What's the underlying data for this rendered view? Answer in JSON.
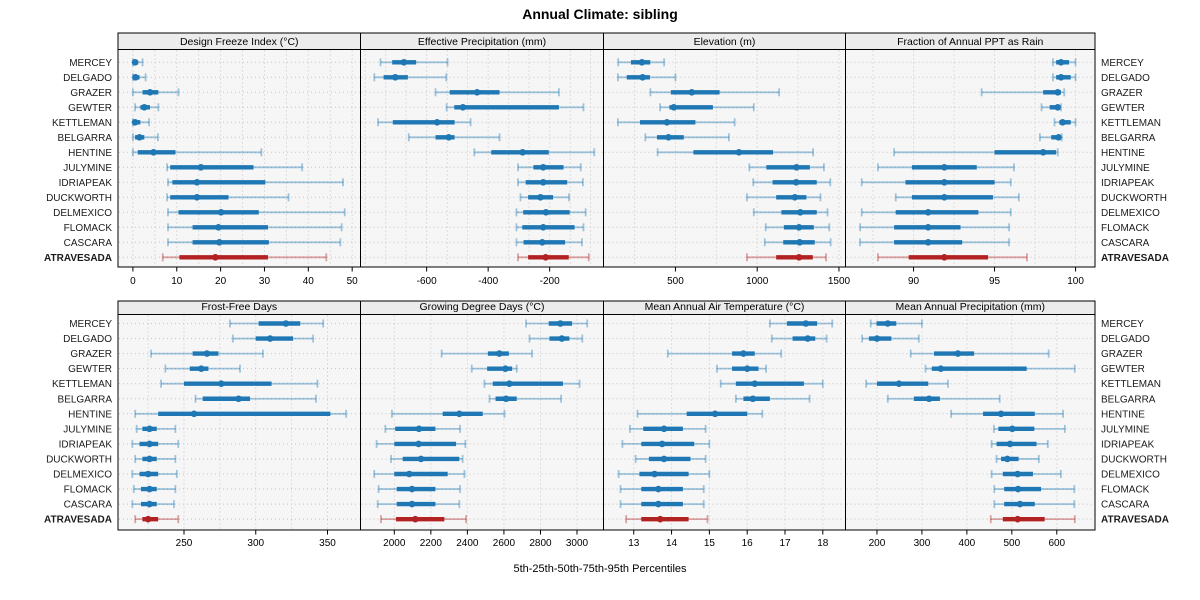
{
  "title": "Annual Climate: sibling",
  "footer": "5th-25th-50th-75th-95th Percentiles",
  "colors": {
    "series": "#1f77b4",
    "series_light": "rgba(31,119,180,0.40)",
    "highlight": "#b22222",
    "highlight_light": "rgba(178,34,34,0.40)",
    "strip_bg": "#ececec",
    "panel_bg": "#f6f6f6",
    "grid": "#c4c4c4",
    "border": "#000000",
    "text": "#000000",
    "label_text": "#1a1a1a"
  },
  "chart_data": {
    "type": "interval-dot-percentiles",
    "title": "Annual Climate: sibling",
    "caption": "5th-25th-50th-75th-95th Percentiles",
    "percentiles": [
      5,
      25,
      50,
      75,
      95
    ],
    "legend_position": "none",
    "grid": "dotted",
    "categories": [
      "MERCEY",
      "DELGADO",
      "GRAZER",
      "GEWTER",
      "KETTLEMAN",
      "BELGARRA",
      "HENTINE",
      "JULYMINE",
      "IDRIAPEAK",
      "DUCKWORTH",
      "DELMEXICO",
      "FLOMACK",
      "CASCARA",
      "ATRAVESADA"
    ],
    "highlight_category": "ATRAVESADA",
    "panels": [
      {
        "title": "Design Freeze Index (°C)",
        "xlim": [
          -3.4,
          51.9
        ],
        "ticks": [
          0,
          10,
          20,
          30,
          40,
          50
        ],
        "grid_values": [
          0,
          5,
          10,
          15,
          20,
          25,
          30,
          35,
          40,
          45,
          50
        ],
        "values": [
          [
            0,
            0.1,
            0.5,
            1.2,
            2.2
          ],
          [
            0,
            0.1,
            0.6,
            1.5,
            2.9
          ],
          [
            0,
            2.2,
            3.9,
            5.8,
            10.4
          ],
          [
            0.5,
            1.7,
            2.6,
            3.9,
            5.8
          ],
          [
            0,
            0.1,
            0.5,
            1.7,
            3.7
          ],
          [
            0,
            0.5,
            1.5,
            2.6,
            5.7
          ],
          [
            0,
            1.1,
            4.7,
            9.7,
            29.3
          ],
          [
            7.8,
            8.5,
            15.5,
            27.5,
            38.6
          ],
          [
            8,
            9,
            14.6,
            30.2,
            47.9
          ],
          [
            7.8,
            8.5,
            14.6,
            21.8,
            35.5
          ],
          [
            8,
            10.4,
            20.1,
            28.7,
            48.3
          ],
          [
            8,
            13.6,
            19.5,
            30.8,
            47.6
          ],
          [
            8,
            13.6,
            19.7,
            31,
            47.3
          ],
          [
            6.8,
            10.6,
            18.8,
            30.8,
            44.1
          ]
        ]
      },
      {
        "title": "Effective Precipitation (mm)",
        "xlim": [
          -815,
          -25
        ],
        "ticks": [
          -600,
          -400,
          -200
        ],
        "grid_values": [
          -800,
          -733,
          -667,
          -600,
          -533,
          -467,
          -400,
          -333,
          -267,
          -200,
          -133,
          -67
        ],
        "values": [
          [
            -750,
            -712,
            -674,
            -634,
            -532
          ],
          [
            -770,
            -740,
            -702,
            -661,
            -536
          ],
          [
            -571,
            -525,
            -436,
            -363,
            -170
          ],
          [
            -535,
            -510,
            -482,
            -170,
            -90
          ],
          [
            -758,
            -710,
            -566,
            -509,
            -457
          ],
          [
            -658,
            -571,
            -528,
            -509,
            -363
          ],
          [
            -445,
            -390,
            -288,
            -203,
            -55
          ],
          [
            -303,
            -253,
            -221,
            -155,
            -99
          ],
          [
            -303,
            -278,
            -221,
            -143,
            -92
          ],
          [
            -295,
            -270,
            -230,
            -189,
            -137
          ],
          [
            -308,
            -286,
            -212,
            -135,
            -83
          ],
          [
            -308,
            -289,
            -221,
            -119,
            -90
          ],
          [
            -308,
            -285,
            -224,
            -150,
            -95
          ],
          [
            -303,
            -270,
            -213,
            -138,
            -73
          ]
        ]
      },
      {
        "title": "Elevation (m)",
        "xlim": [
          60,
          1540
        ],
        "ticks": [
          500,
          1000,
          1500
        ],
        "grid_values": [
          250,
          500,
          750,
          1000,
          1250,
          1500
        ],
        "values": [
          [
            150,
            228,
            295,
            346,
            431
          ],
          [
            148,
            202,
            299,
            344,
            500
          ],
          [
            347,
            472,
            600,
            770,
            1134
          ],
          [
            406,
            463,
            490,
            729,
            979
          ],
          [
            148,
            283,
            448,
            622,
            862
          ],
          [
            316,
            387,
            457,
            551,
            827
          ],
          [
            391,
            610,
            888,
            1097,
            1342
          ],
          [
            952,
            1056,
            1240,
            1322,
            1408
          ],
          [
            976,
            1094,
            1238,
            1364,
            1447
          ],
          [
            937,
            1116,
            1230,
            1301,
            1387
          ],
          [
            979,
            1148,
            1264,
            1364,
            1430
          ],
          [
            1052,
            1163,
            1256,
            1346,
            1441
          ],
          [
            1046,
            1159,
            1260,
            1352,
            1449
          ],
          [
            937,
            1116,
            1256,
            1340,
            1421
          ]
        ]
      },
      {
        "title": "Fraction of Annual PPT as Rain",
        "xlim": [
          85.8,
          101.2
        ],
        "ticks": [
          90,
          95,
          100
        ],
        "grid_values": [
          87.5,
          90,
          92.5,
          95,
          97.5,
          100
        ],
        "values": [
          [
            98.6,
            98.8,
            99.1,
            99.6,
            100
          ],
          [
            98.6,
            98.8,
            99.1,
            99.7,
            100
          ],
          [
            94.2,
            98.0,
            98.9,
            99.1,
            99.3
          ],
          [
            97.9,
            98.4,
            98.9,
            99.0,
            99.1
          ],
          [
            98.7,
            99.0,
            99.2,
            99.7,
            100
          ],
          [
            97.8,
            98.5,
            98.95,
            99.05,
            99.15
          ],
          [
            88.8,
            95.0,
            98.0,
            98.8,
            98.9
          ],
          [
            87.8,
            89.9,
            91.9,
            93.9,
            96.2
          ],
          [
            86.8,
            89.5,
            91.9,
            95.0,
            96.0
          ],
          [
            88.9,
            89.9,
            91.9,
            94.9,
            96.5
          ],
          [
            86.8,
            88.9,
            90.9,
            94.0,
            96.0
          ],
          [
            86.7,
            88.8,
            90.9,
            92.9,
            95.9
          ],
          [
            86.7,
            88.8,
            90.9,
            93.0,
            95.9
          ],
          [
            87.8,
            89.7,
            91.9,
            94.6,
            97.0
          ]
        ]
      },
      {
        "title": "Frost-Free Days",
        "xlim": [
          204,
          373
        ],
        "ticks": [
          250,
          300,
          350
        ],
        "grid_values": [
          225,
          250,
          275,
          300,
          325,
          350
        ],
        "values": [
          [
            282,
            302,
            321,
            331,
            347
          ],
          [
            284,
            300,
            310,
            326,
            340
          ],
          [
            227,
            256,
            266,
            274,
            305
          ],
          [
            237,
            254,
            262,
            267,
            289
          ],
          [
            234,
            250,
            276,
            311,
            343
          ],
          [
            258,
            263,
            288,
            296,
            342
          ],
          [
            216,
            232,
            257,
            352,
            363
          ],
          [
            217,
            221,
            226,
            231,
            244
          ],
          [
            214,
            219,
            226,
            232,
            246
          ],
          [
            216,
            221,
            226,
            231,
            244
          ],
          [
            214,
            219,
            225,
            232,
            245
          ],
          [
            215,
            220,
            226,
            231,
            244
          ],
          [
            214,
            220,
            226,
            231,
            243
          ],
          [
            216,
            221,
            225,
            232,
            246
          ]
        ]
      },
      {
        "title": "Growing Degree Days (°C)",
        "xlim": [
          1815,
          3145
        ],
        "ticks": [
          2000,
          2200,
          2400,
          2600,
          2800,
          3000
        ],
        "grid_values": [
          2000,
          2200,
          2400,
          2600,
          2800,
          3000
        ],
        "values": [
          [
            2721,
            2845,
            2909,
            2973,
            3056
          ],
          [
            2740,
            2849,
            2917,
            2958,
            3029
          ],
          [
            2259,
            2512,
            2575,
            2627,
            2754
          ],
          [
            2424,
            2508,
            2608,
            2645,
            2670
          ],
          [
            2493,
            2539,
            2630,
            2923,
            3014
          ],
          [
            2521,
            2554,
            2612,
            2670,
            2913
          ],
          [
            1987,
            2265,
            2356,
            2484,
            2603
          ],
          [
            1951,
            2005,
            2135,
            2225,
            2360
          ],
          [
            1903,
            2000,
            2133,
            2338,
            2389
          ],
          [
            1982,
            2046,
            2146,
            2356,
            2374
          ],
          [
            1890,
            2000,
            2082,
            2292,
            2384
          ],
          [
            1914,
            2013,
            2097,
            2225,
            2360
          ],
          [
            1909,
            2013,
            2097,
            2225,
            2356
          ],
          [
            1927,
            2009,
            2115,
            2274,
            2393
          ]
        ]
      },
      {
        "title": "Mean Annual Air Temperature (°C)",
        "xlim": [
          12.2,
          18.6
        ],
        "ticks": [
          13,
          14,
          15,
          16,
          17,
          18
        ],
        "grid_values": [
          13,
          14,
          15,
          16,
          17,
          18
        ],
        "values": [
          [
            16.6,
            17.05,
            17.55,
            17.85,
            18.25
          ],
          [
            16.65,
            17.2,
            17.6,
            17.8,
            18.1
          ],
          [
            13.9,
            15.6,
            15.9,
            16.2,
            16.9
          ],
          [
            15.2,
            15.6,
            16.0,
            16.3,
            16.5
          ],
          [
            15.3,
            15.7,
            16.2,
            17.5,
            18.0
          ],
          [
            15.7,
            15.9,
            16.15,
            16.6,
            17.65
          ],
          [
            13.1,
            14.4,
            15.15,
            16.0,
            16.4
          ],
          [
            12.9,
            13.25,
            13.8,
            14.3,
            14.9
          ],
          [
            12.7,
            13.2,
            13.75,
            14.6,
            15.0
          ],
          [
            13.05,
            13.4,
            13.8,
            14.5,
            14.9
          ],
          [
            12.6,
            13.15,
            13.55,
            14.45,
            15.0
          ],
          [
            12.65,
            13.2,
            13.65,
            14.3,
            14.85
          ],
          [
            12.65,
            13.2,
            13.65,
            14.3,
            14.85
          ],
          [
            12.8,
            13.2,
            13.7,
            14.45,
            14.95
          ]
        ]
      },
      {
        "title": "Mean Annual Precipitation (mm)",
        "xlim": [
          130,
          685
        ],
        "ticks": [
          200,
          300,
          400,
          500,
          600
        ],
        "grid_values": [
          200,
          300,
          400,
          500,
          600
        ],
        "values": [
          [
            186,
            199,
            224,
            243,
            300
          ],
          [
            167,
            182,
            200,
            232,
            293
          ],
          [
            275,
            327,
            380,
            416,
            582
          ],
          [
            308,
            322,
            342,
            533,
            640
          ],
          [
            176,
            200,
            249,
            314,
            358
          ],
          [
            224,
            282,
            316,
            340,
            473
          ],
          [
            365,
            436,
            476,
            551,
            614
          ],
          [
            460,
            470,
            501,
            550,
            618
          ],
          [
            455,
            466,
            496,
            555,
            580
          ],
          [
            466,
            476,
            490,
            515,
            560
          ],
          [
            455,
            480,
            513,
            547,
            609
          ],
          [
            461,
            483,
            514,
            565,
            639
          ],
          [
            461,
            483,
            518,
            551,
            639
          ],
          [
            453,
            480,
            513,
            573,
            640
          ]
        ]
      }
    ]
  }
}
